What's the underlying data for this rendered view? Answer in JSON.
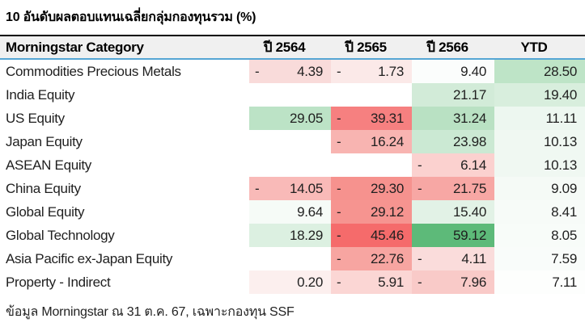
{
  "title": "10 อันดับผลตอบแทนเฉลี่ยกลุ่มกองทุนรวม (%)",
  "footer": "ข้อมูล Morningstar ณ 31 ต.ค. 67, เฉพาะกองทุน SSF",
  "colors": {
    "header_bg": "#f0f0f0",
    "header_top_border": "#000000",
    "header_underline": "#55a6d4",
    "strong_negative": "#f56b6b",
    "strong_positive": "#5dba79",
    "text": "#1f1f1f"
  },
  "table": {
    "columns": [
      "Morningstar Category",
      "ปี 2564",
      "ปี 2565",
      "ปี 2566",
      "YTD"
    ],
    "rows": [
      {
        "category": "Commodities Precious Metals",
        "values": [
          -4.39,
          -1.73,
          9.4,
          28.5
        ],
        "colors": [
          "#f9dbda",
          "#fbe9e8",
          "#fbfdfc",
          "#bee4c7"
        ]
      },
      {
        "category": "India Equity",
        "values": [
          null,
          null,
          21.17,
          19.4
        ],
        "colors": [
          null,
          null,
          "#d2ebd8",
          "#d8eedd"
        ]
      },
      {
        "category": "US Equity",
        "values": [
          29.05,
          -39.31,
          31.24,
          11.11
        ],
        "colors": [
          "#bce3c6",
          "#f68080",
          "#b9e1c3",
          "#edf7f0"
        ]
      },
      {
        "category": "Japan Equity",
        "values": [
          null,
          -16.24,
          23.98,
          10.13
        ],
        "colors": [
          null,
          "#f8b4b1",
          "#cbe9d3",
          "#f0f8f2"
        ]
      },
      {
        "category": "ASEAN Equity",
        "values": [
          null,
          null,
          -6.14,
          10.13
        ],
        "colors": [
          null,
          null,
          "#fbd1cf",
          "#f0f8f2"
        ]
      },
      {
        "category": "China Equity",
        "values": [
          -14.05,
          -29.3,
          -21.75,
          9.09
        ],
        "colors": [
          "#f9bab8",
          "#f6928e",
          "#f7a7a4",
          "#f5faf6"
        ]
      },
      {
        "category": "Global Equity",
        "values": [
          9.64,
          -29.12,
          15.4,
          8.41
        ],
        "colors": [
          "#f6fbf7",
          "#f69490",
          "#e2f2e6",
          "#f7fbf8"
        ]
      },
      {
        "category": "Global Technology",
        "values": [
          18.29,
          -45.46,
          59.12,
          8.05
        ],
        "colors": [
          "#dcf0e1",
          "#f56b6b",
          "#5dba79",
          "#f8fcf9"
        ]
      },
      {
        "category": "Asia Pacific ex-Japan Equity",
        "values": [
          null,
          -22.76,
          -4.11,
          7.59
        ],
        "colors": [
          null,
          "#f7a5a1",
          "#fadcdb",
          "#f9fcfa"
        ]
      },
      {
        "category": "Property - Indirect",
        "values": [
          0.2,
          -5.91,
          -7.96,
          7.11
        ],
        "colors": [
          "#fcefee",
          "#fbd6d4",
          "#f9cac8",
          "#fdfefd"
        ]
      }
    ]
  },
  "chart_data": {
    "type": "heatmap",
    "title": "10 อันดับผลตอบแทนเฉลี่ยกลุ่มกองทุนรวม (%)",
    "rows": [
      "Commodities Precious Metals",
      "India Equity",
      "US Equity",
      "Japan Equity",
      "ASEAN Equity",
      "China Equity",
      "Global Equity",
      "Global Technology",
      "Asia Pacific ex-Japan Equity",
      "Property - Indirect"
    ],
    "columns": [
      "ปี 2564",
      "ปี 2565",
      "ปี 2566",
      "YTD"
    ],
    "values": [
      [
        -4.39,
        -1.73,
        9.4,
        28.5
      ],
      [
        null,
        null,
        21.17,
        19.4
      ],
      [
        29.05,
        -39.31,
        31.24,
        11.11
      ],
      [
        null,
        -16.24,
        23.98,
        10.13
      ],
      [
        null,
        null,
        -6.14,
        10.13
      ],
      [
        -14.05,
        -29.3,
        -21.75,
        9.09
      ],
      [
        9.64,
        -29.12,
        15.4,
        8.41
      ],
      [
        18.29,
        -45.46,
        59.12,
        8.05
      ],
      [
        null,
        -22.76,
        -4.11,
        7.59
      ],
      [
        0.2,
        -5.91,
        -7.96,
        7.11
      ]
    ],
    "value_format": "accounting, 2 decimals, minus sign left-aligned in cell",
    "color_scale": {
      "negative": "#f56b6b",
      "neutral": "#ffffff",
      "positive": "#5dba79"
    },
    "source_note": "ข้อมูล Morningstar ณ 31 ต.ค. 67, เฉพาะกองทุน SSF"
  }
}
